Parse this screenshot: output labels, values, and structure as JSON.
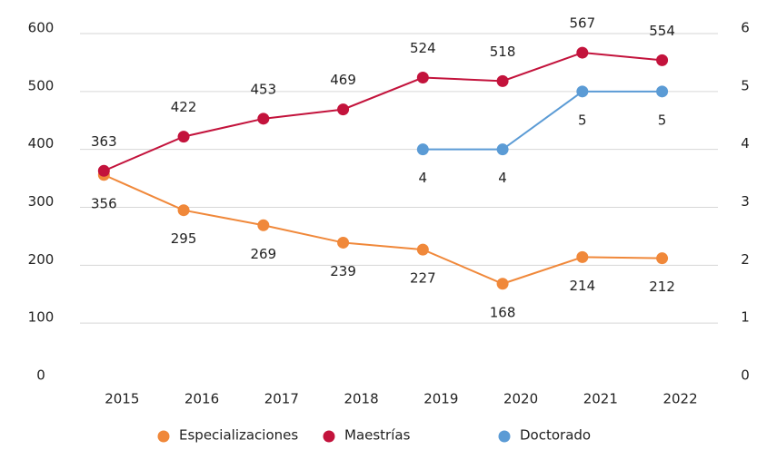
{
  "chart_data": {
    "type": "line",
    "categories": [
      "2015",
      "2016",
      "2017",
      "2018",
      "2019",
      "2020",
      "2021",
      "2022"
    ],
    "series": [
      {
        "name": "Especializaciones",
        "color": "#f0883a",
        "values": [
          356,
          295,
          269,
          239,
          227,
          168,
          214,
          212
        ],
        "label_pos": "below"
      },
      {
        "name": "Maestrías",
        "color": "#c3133c",
        "values": [
          363,
          422,
          453,
          469,
          524,
          518,
          567,
          554
        ],
        "label_pos": "above"
      },
      {
        "name": "Doctorado",
        "color": "#5b9bd5",
        "values": [
          null,
          null,
          null,
          null,
          4,
          4,
          5,
          5
        ],
        "axis": "y2",
        "label_pos": "below"
      }
    ],
    "ylim": [
      0,
      600
    ],
    "yticks": [
      0,
      100,
      200,
      300,
      400,
      500,
      600
    ],
    "y2lim": [
      0,
      6
    ],
    "y2ticks": [
      0,
      1,
      2,
      3,
      4,
      5,
      6
    ],
    "grid": true,
    "legend": "bottom"
  }
}
